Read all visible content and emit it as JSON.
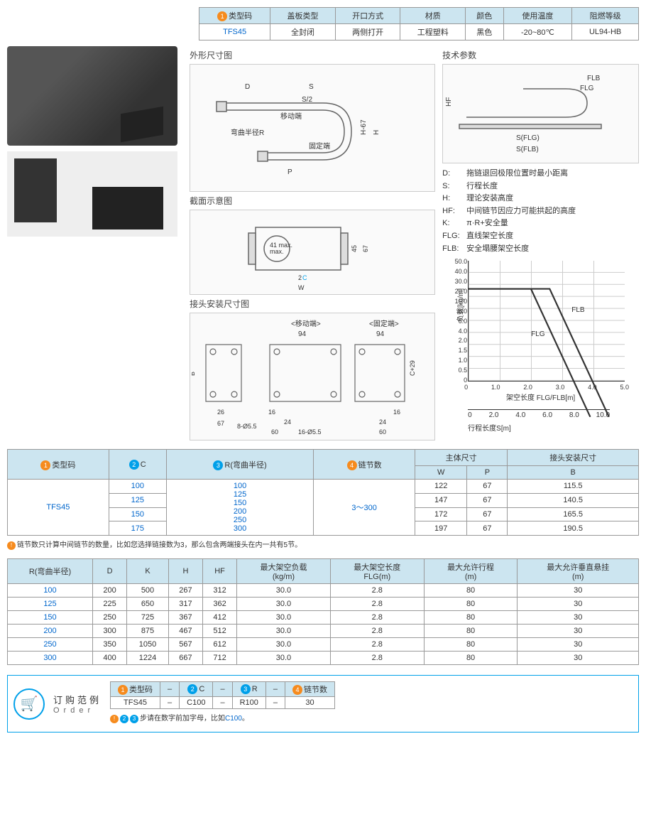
{
  "topTable": {
    "headers": [
      "类型码",
      "盖板类型",
      "开口方式",
      "材质",
      "颜色",
      "使用温度",
      "阻燃等级"
    ],
    "badge": "1",
    "values": [
      "TFS45",
      "全封闭",
      "两侧打开",
      "工程塑料",
      "黑色",
      "-20~80℃",
      "UL94-HB"
    ]
  },
  "sections": {
    "outline": "外形尺寸图",
    "cross": "截面示意图",
    "mount": "接头安装尺寸图",
    "tech": "技术参数"
  },
  "outlineLabels": {
    "D": "D",
    "S": "S",
    "S2": "S/2",
    "moving": "移动端",
    "radius": "弯曲半径R",
    "fixed": "固定端",
    "P": "P",
    "H67": "H-67",
    "H": "H"
  },
  "crossLabels": {
    "max": "41\nmax.",
    "C": "C",
    "W": "W",
    "h45": "45",
    "h67": "67",
    "badge": "2"
  },
  "mountLabels": {
    "moving": "<移动端>",
    "fixed": "<固定端>",
    "B": "B",
    "d94": "94",
    "d26": "26",
    "d67": "67",
    "d16": "16",
    "d24": "24",
    "d60": "60",
    "hole1": "8-Ø5.5",
    "hole2": "16-Ø5.5",
    "C29": "C+29"
  },
  "techLabels": {
    "FLB": "FLB",
    "FLG": "FLG",
    "HF": "HF",
    "SFLG": "S(FLG)",
    "SFLB": "S(FLB)"
  },
  "defs": [
    {
      "k": "D:",
      "v": "拖链退回极限位置时最小距离"
    },
    {
      "k": "S:",
      "v": "行程长度"
    },
    {
      "k": "H:",
      "v": "理论安装高度"
    },
    {
      "k": "HF:",
      "v": "中间链节因应力可能拱起的高度"
    },
    {
      "k": "K:",
      "v": "π·R+安全量"
    },
    {
      "k": "FLG:",
      "v": "直线架空长度"
    },
    {
      "k": "FLB:",
      "v": "安全塌腰架空长度"
    }
  ],
  "chart": {
    "ylabel": "负载[kg/m]",
    "xlabel": "架空长度 FLG/FLB[m]",
    "yticks": [
      "50.0",
      "40.0",
      "30.0",
      "20.0",
      "10.0",
      "8.0",
      "6.0",
      "4.0",
      "2.0",
      "1.5",
      "1.0",
      "0.5",
      "0"
    ],
    "xticks": [
      "0",
      "1.0",
      "2.0",
      "3.0",
      "4.0",
      "5.0"
    ],
    "label1": "FLG",
    "label2": "FLB"
  },
  "scale": {
    "label": "行程长度S[m]",
    "ticks": [
      "0",
      "2.0",
      "4.0",
      "6.0",
      "8.0",
      "10.0"
    ]
  },
  "specTable": {
    "head1": [
      "类型码",
      "C",
      "R(弯曲半径)",
      "链节数",
      "主体尺寸",
      "接头安装尺寸"
    ],
    "badges": [
      "1",
      "2",
      "3",
      "4"
    ],
    "head2": [
      "W",
      "P",
      "B"
    ],
    "model": "TFS45",
    "cVals": [
      "100",
      "125",
      "150",
      "175"
    ],
    "rVals": [
      "100",
      "125",
      "150",
      "200",
      "250",
      "300"
    ],
    "links": "3～300",
    "rows": [
      [
        "122",
        "67",
        "115.5"
      ],
      [
        "147",
        "67",
        "140.5"
      ],
      [
        "172",
        "67",
        "165.5"
      ],
      [
        "197",
        "67",
        "190.5"
      ]
    ]
  },
  "note1": "链节数只计算中间链节的数量，比如您选择链接数为3，那么包含两端接头在内一共有5节。",
  "radiusTable": {
    "headers": [
      "R(弯曲半径)",
      "D",
      "K",
      "H",
      "HF",
      "最大架空负载\n(kg/m)",
      "最大架空长度\nFLG(m)",
      "最大允许行程\n(m)",
      "最大允许垂直悬挂\n(m)"
    ],
    "rows": [
      [
        "100",
        "200",
        "500",
        "267",
        "312",
        "30.0",
        "2.8",
        "80",
        "30"
      ],
      [
        "125",
        "225",
        "650",
        "317",
        "362",
        "30.0",
        "2.8",
        "80",
        "30"
      ],
      [
        "150",
        "250",
        "725",
        "367",
        "412",
        "30.0",
        "2.8",
        "80",
        "30"
      ],
      [
        "200",
        "300",
        "875",
        "467",
        "512",
        "30.0",
        "2.8",
        "80",
        "30"
      ],
      [
        "250",
        "350",
        "1050",
        "567",
        "612",
        "30.0",
        "2.8",
        "80",
        "30"
      ],
      [
        "300",
        "400",
        "1224",
        "667",
        "712",
        "30.0",
        "2.8",
        "80",
        "30"
      ]
    ]
  },
  "order": {
    "title": "订购范例",
    "sub": "Order",
    "headers": [
      "类型码",
      "–",
      "C",
      "–",
      "R",
      "–",
      "链节数"
    ],
    "badges": [
      "1",
      "2",
      "3",
      "4"
    ],
    "values": [
      "TFS45",
      "–",
      "C100",
      "–",
      "R100",
      "–",
      "30"
    ],
    "note": "步请在数字前加字母，比如",
    "noteHL": "C100",
    "noteEnd": "。"
  }
}
